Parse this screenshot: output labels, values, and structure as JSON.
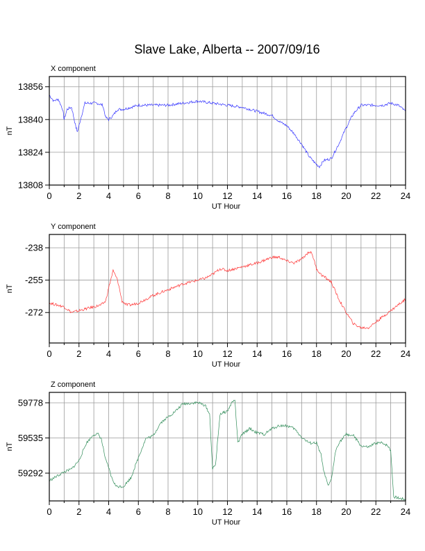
{
  "title": "Slave Lake, Alberta -- 2007/09/16",
  "chart_data": [
    {
      "type": "line",
      "panel_label": "X component",
      "xlabel": "UT Hour",
      "ylabel": "nT",
      "xlim": [
        0,
        24
      ],
      "ylim": [
        13808,
        13861
      ],
      "xticks": [
        0,
        2,
        4,
        6,
        8,
        10,
        12,
        14,
        16,
        18,
        20,
        22,
        24
      ],
      "yticks": [
        13808,
        13824,
        13840,
        13856
      ],
      "grid": true,
      "color": "#3333ff",
      "series": [
        {
          "x": [
            0,
            0.3,
            0.6,
            0.9,
            1.0,
            1.2,
            1.5,
            1.8,
            1.9,
            2.1,
            2.4,
            2.8,
            3.2,
            3.6,
            3.8,
            4.0,
            4.3,
            4.6,
            5.0,
            5.5,
            6.0,
            7.0,
            8.0,
            9.0,
            10.0,
            11.0,
            12.0,
            13.0,
            14.0,
            14.5,
            15.0,
            15.5,
            16.0,
            16.5,
            17.0,
            17.5,
            18.0,
            18.2,
            18.5,
            19.0,
            19.5,
            20.0,
            20.5,
            21.0,
            21.5,
            22.0,
            22.5,
            23.0,
            23.5,
            24.0
          ],
          "y": [
            13852,
            13849,
            13850,
            13845,
            13840,
            13845,
            13846,
            13836,
            13834,
            13840,
            13848,
            13848,
            13848,
            13847,
            13841,
            13840,
            13842,
            13845,
            13845,
            13846,
            13847,
            13847,
            13847,
            13848,
            13849,
            13848,
            13847,
            13846,
            13844,
            13843,
            13842,
            13839,
            13837,
            13833,
            13828,
            13822,
            13818,
            13817,
            13820,
            13821,
            13828,
            13836,
            13843,
            13847,
            13847,
            13847,
            13847,
            13848,
            13847,
            13844
          ]
        }
      ]
    },
    {
      "type": "line",
      "panel_label": "Y component",
      "xlabel": "UT Hour",
      "ylabel": "nT",
      "xlim": [
        0,
        24
      ],
      "ylim": [
        -288,
        -231
      ],
      "xticks": [
        0,
        2,
        4,
        6,
        8,
        10,
        12,
        14,
        16,
        18,
        20,
        22,
        24
      ],
      "yticks": [
        -238,
        -255,
        -272
      ],
      "grid": true,
      "color": "#ff3333",
      "series": [
        {
          "x": [
            0,
            0.5,
            1.0,
            1.5,
            2.0,
            2.5,
            3.0,
            3.5,
            3.8,
            4.0,
            4.3,
            4.6,
            4.9,
            5.2,
            5.5,
            6.0,
            7.0,
            8.0,
            9.0,
            10.0,
            10.5,
            11.0,
            11.5,
            12.0,
            13.0,
            14.0,
            15.0,
            15.5,
            16.0,
            16.5,
            17.0,
            17.5,
            17.7,
            18.0,
            18.3,
            19.0,
            19.5,
            20.0,
            20.5,
            21.0,
            21.5,
            22.0,
            22.5,
            23.0,
            23.5,
            24.0
          ],
          "y": [
            -267,
            -268,
            -269,
            -272,
            -271,
            -270,
            -269,
            -268,
            -266,
            -259,
            -250,
            -255,
            -266,
            -268,
            -268,
            -267,
            -263,
            -260,
            -257,
            -255,
            -254,
            -252,
            -249,
            -250,
            -248,
            -246,
            -243,
            -243,
            -245,
            -246,
            -244,
            -240,
            -241,
            -249,
            -252,
            -256,
            -265,
            -272,
            -278,
            -280,
            -280,
            -277,
            -274,
            -271,
            -268,
            -265
          ]
        }
      ]
    },
    {
      "type": "line",
      "panel_label": "Z component",
      "xlabel": "UT Hour",
      "ylabel": "nT",
      "xlim": [
        0,
        24
      ],
      "ylim": [
        59100,
        59850
      ],
      "xticks": [
        0,
        2,
        4,
        6,
        8,
        10,
        12,
        14,
        16,
        18,
        20,
        22,
        24
      ],
      "yticks": [
        59292,
        59535,
        59778
      ],
      "grid": true,
      "color": "#2e8b57",
      "series": [
        {
          "x": [
            0,
            0.5,
            1.0,
            1.5,
            2.0,
            2.5,
            3.0,
            3.3,
            3.5,
            3.8,
            4.0,
            4.2,
            4.5,
            5.0,
            5.5,
            6.0,
            6.5,
            7.0,
            7.5,
            8.0,
            8.5,
            9.0,
            10.0,
            10.5,
            10.8,
            11.0,
            11.2,
            11.5,
            12.0,
            12.3,
            12.5,
            12.7,
            13.0,
            13.5,
            14.0,
            14.5,
            15.0,
            15.5,
            16.0,
            16.5,
            17.0,
            17.5,
            18.0,
            18.3,
            18.5,
            18.8,
            19.0,
            19.3,
            19.5,
            20.0,
            20.5,
            21.0,
            21.5,
            22.0,
            22.5,
            22.8,
            23.0,
            23.2,
            23.5,
            24.0
          ],
          "y": [
            59240,
            59270,
            59300,
            59320,
            59380,
            59500,
            59560,
            59560,
            59530,
            59380,
            59330,
            59260,
            59200,
            59200,
            59260,
            59400,
            59530,
            59550,
            59640,
            59680,
            59720,
            59770,
            59780,
            59760,
            59700,
            59320,
            59350,
            59700,
            59720,
            59780,
            59800,
            59500,
            59560,
            59600,
            59570,
            59560,
            59600,
            59620,
            59620,
            59600,
            59540,
            59500,
            59500,
            59420,
            59300,
            59200,
            59250,
            59450,
            59500,
            59560,
            59550,
            59480,
            59470,
            59500,
            59500,
            59480,
            59450,
            59130,
            59120,
            59110
          ]
        }
      ]
    }
  ]
}
